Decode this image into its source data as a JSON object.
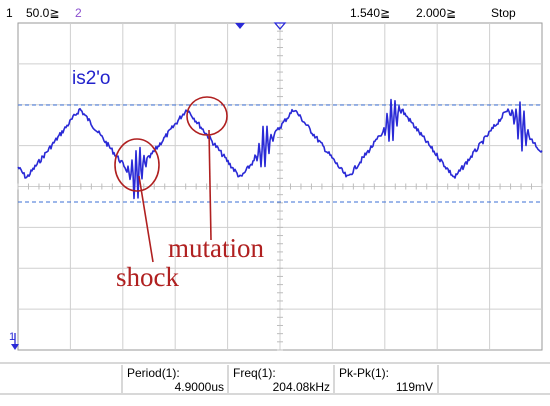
{
  "status_bar": {
    "channel_number": "1",
    "volts_per_div": "50.0≧",
    "channel2_number": "2",
    "time_position": "1.540≧",
    "time_per_div": "2.000≧",
    "run_state": "Stop"
  },
  "colors": {
    "trace": "#2a2ad6",
    "grid": "#c8c8c8",
    "ref_line": "#3b6fd6",
    "annotation": "#b02020",
    "channel2": "#8a4fcf"
  },
  "trace_label": "is2'o",
  "annotations": {
    "mutation": "mutation",
    "shock": "shock"
  },
  "ground_marker": "1",
  "measurements": [
    {
      "label": "Period(1):",
      "value": "4.9000us"
    },
    {
      "label": "Freq(1):",
      "value": "204.08kHz"
    },
    {
      "label": "Pk-Pk(1):",
      "value": "119mV"
    }
  ]
}
